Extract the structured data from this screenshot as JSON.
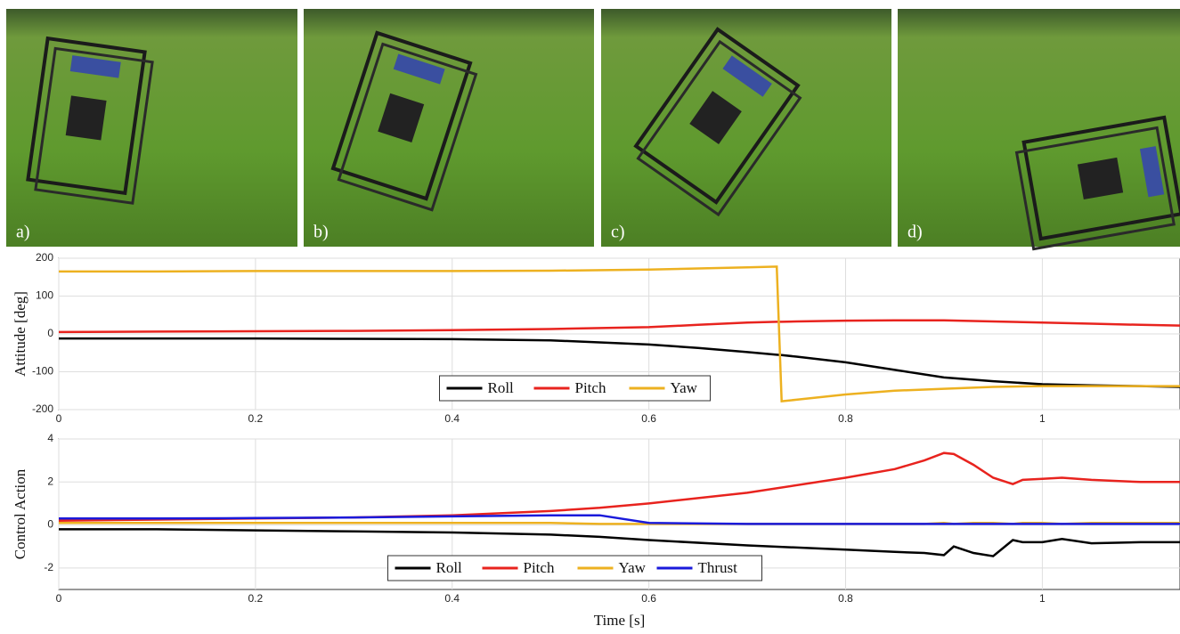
{
  "panels": [
    {
      "label": "a)"
    },
    {
      "label": "b)"
    },
    {
      "label": "c)"
    },
    {
      "label": "d)"
    }
  ],
  "chart_data": [
    {
      "type": "line",
      "ylabel": "Attitude [deg]",
      "grid": true,
      "legend": "lower center",
      "xlim": [
        0,
        1.14
      ],
      "xticks": [
        0,
        0.2,
        0.4,
        0.6,
        0.8,
        1
      ],
      "ylim": [
        -200,
        200
      ],
      "yticks": [
        -200,
        -100,
        0,
        100,
        200
      ],
      "x": [
        0,
        0.1,
        0.2,
        0.3,
        0.4,
        0.5,
        0.6,
        0.65,
        0.7,
        0.73,
        0.735,
        0.75,
        0.8,
        0.85,
        0.9,
        0.95,
        1.0,
        1.05,
        1.1,
        1.14
      ],
      "series": [
        {
          "name": "Roll",
          "color": "#000000",
          "values": [
            -12,
            -12,
            -12,
            -13,
            -14,
            -17,
            -28,
            -37,
            -48,
            -55,
            -56,
            -60,
            -75,
            -95,
            -115,
            -125,
            -133,
            -136,
            -138,
            -140
          ]
        },
        {
          "name": "Pitch",
          "color": "#e8231e",
          "values": [
            5,
            6,
            7,
            8,
            10,
            13,
            18,
            24,
            30,
            32,
            32,
            33,
            35,
            36,
            36,
            33,
            30,
            27,
            24,
            22
          ]
        },
        {
          "name": "Yaw",
          "color": "#edb120",
          "values": [
            165,
            165,
            166,
            166,
            166,
            167,
            170,
            173,
            176,
            178,
            -178,
            -174,
            -160,
            -150,
            -145,
            -140,
            -138,
            -138,
            -138,
            -138
          ]
        }
      ]
    },
    {
      "type": "line",
      "ylabel": "Control Action",
      "xlabel": "Time [s]",
      "grid": true,
      "legend": "lower center",
      "xlim": [
        0,
        1.14
      ],
      "xticks": [
        0,
        0.2,
        0.4,
        0.6,
        0.8,
        1
      ],
      "ylim": [
        -3,
        4
      ],
      "yticks": [
        -2,
        0,
        2,
        4
      ],
      "x": [
        0,
        0.1,
        0.2,
        0.3,
        0.4,
        0.5,
        0.55,
        0.6,
        0.7,
        0.8,
        0.85,
        0.88,
        0.9,
        0.91,
        0.93,
        0.95,
        0.97,
        0.98,
        1.0,
        1.02,
        1.05,
        1.1,
        1.14
      ],
      "series": [
        {
          "name": "Roll",
          "color": "#000000",
          "values": [
            -0.2,
            -0.2,
            -0.25,
            -0.3,
            -0.35,
            -0.45,
            -0.55,
            -0.7,
            -0.95,
            -1.15,
            -1.25,
            -1.3,
            -1.4,
            -1.0,
            -1.3,
            -1.45,
            -0.7,
            -0.8,
            -0.8,
            -0.65,
            -0.85,
            -0.8,
            -0.8
          ]
        },
        {
          "name": "Pitch",
          "color": "#e8231e",
          "values": [
            0.2,
            0.25,
            0.3,
            0.35,
            0.45,
            0.65,
            0.8,
            1.0,
            1.5,
            2.2,
            2.6,
            3.0,
            3.35,
            3.3,
            2.8,
            2.2,
            1.9,
            2.1,
            2.15,
            2.2,
            2.1,
            2.0,
            2.0
          ]
        },
        {
          "name": "Yaw",
          "color": "#edb120",
          "values": [
            0.1,
            0.1,
            0.1,
            0.1,
            0.1,
            0.1,
            0.05,
            0.05,
            0.05,
            0.05,
            0.05,
            0.05,
            0.1,
            0.05,
            0.1,
            0.1,
            0.05,
            0.1,
            0.1,
            0.05,
            0.1,
            0.1,
            0.1
          ]
        },
        {
          "name": "Thrust",
          "color": "#1a1adb",
          "values": [
            0.3,
            0.3,
            0.32,
            0.35,
            0.4,
            0.45,
            0.45,
            0.1,
            0.05,
            0.05,
            0.05,
            0.05,
            0.05,
            0.05,
            0.05,
            0.05,
            0.05,
            0.05,
            0.05,
            0.05,
            0.05,
            0.05,
            0.05
          ]
        }
      ]
    }
  ]
}
